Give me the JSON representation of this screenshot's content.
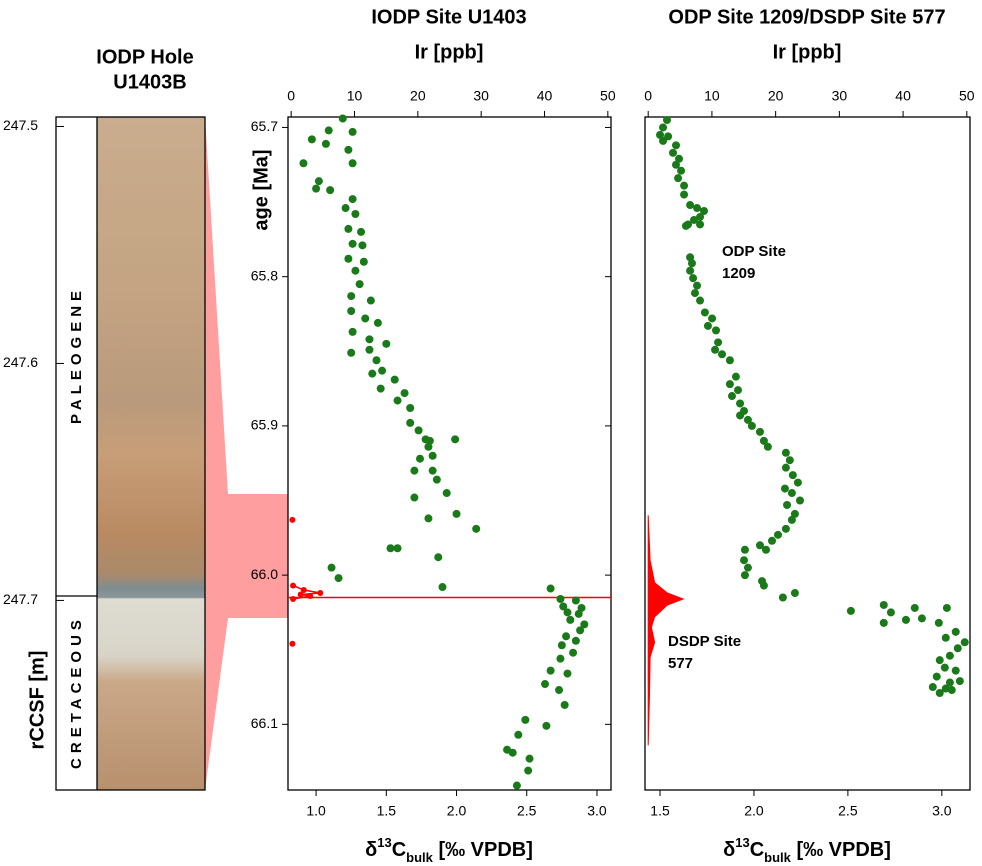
{
  "core": {
    "title": [
      "IODP Hole",
      "U1403B"
    ],
    "ylabel": "rCCSF [m]",
    "ylim": [
      247.496,
      247.78
    ],
    "yticks": [
      247.5,
      247.6,
      247.7
    ],
    "units": [
      "PALEOGENE",
      "CRETACEOUS"
    ]
  },
  "chart_data": [
    {
      "type": "scatter",
      "title": "IODP Site U1403",
      "x2label": "Ir [ppb]",
      "xlabel": [
        "δ",
        "13",
        "C",
        "bulk",
        " [‰ VPDB]"
      ],
      "ylabel": "age [Ma]",
      "xlim": [
        0.8,
        3.1
      ],
      "xticks": [
        {
          "value": 1,
          "label": "1.0"
        },
        1.5,
        {
          "value": 2,
          "label": "2.0"
        },
        2.5,
        {
          "value": 3,
          "label": "3.0"
        }
      ],
      "x2lim": [
        -0.5,
        50.5
      ],
      "x2ticks": [
        0,
        10,
        20,
        30,
        40,
        50
      ],
      "ylim": [
        65.693,
        66.144
      ],
      "yticks": [
        65.7,
        65.8,
        65.9,
        {
          "value": 66,
          "label": "66.0"
        },
        66.1
      ],
      "y_inverted": true,
      "boundary_line": 66.015,
      "series": [
        {
          "color": "#1a7a1a",
          "x": [
            1.19,
            1.09,
            1.26,
            0.97,
            1.07,
            1.23,
            0.91,
            1.26,
            1.02,
            1.0,
            1.1,
            1.21,
            1.26,
            1.28,
            1.23,
            1.32,
            1.26,
            1.33,
            1.23,
            1.34,
            1.28,
            1.31,
            1.25,
            1.39,
            1.25,
            1.35,
            1.44,
            1.26,
            1.38,
            1.5,
            1.38,
            1.25,
            1.43,
            1.47,
            1.4,
            1.56,
            1.46,
            1.63,
            1.58,
            1.67,
            1.67,
            1.73,
            1.78,
            1.81,
            1.99,
            1.8,
            1.83,
            1.74,
            1.83,
            1.7,
            1.86,
            1.93,
            1.7,
            2.0,
            1.8,
            2.14,
            1.53,
            1.58,
            1.87,
            1.11,
            1.16,
            1.9,
            2.67,
            2.74,
            2.85,
            2.76,
            2.89,
            2.79,
            2.87,
            2.81,
            2.91,
            2.88,
            2.78,
            2.85,
            2.75,
            2.83,
            2.74,
            2.67,
            2.79,
            2.63,
            2.73,
            2.77,
            2.49,
            2.64,
            2.44,
            2.36,
            2.4,
            2.52,
            2.51,
            2.43
          ],
          "y": [
            65.694,
            65.702,
            65.703,
            65.708,
            65.711,
            65.715,
            65.724,
            65.724,
            65.736,
            65.741,
            65.742,
            65.754,
            65.748,
            65.758,
            65.768,
            65.77,
            65.778,
            65.779,
            65.788,
            65.79,
            65.796,
            65.805,
            65.813,
            65.816,
            65.823,
            65.828,
            65.831,
            65.837,
            65.842,
            65.845,
            65.849,
            65.851,
            65.856,
            65.863,
            65.865,
            65.869,
            65.875,
            65.878,
            65.883,
            65.888,
            65.898,
            65.903,
            65.909,
            65.91,
            65.909,
            65.914,
            65.92,
            65.922,
            65.93,
            65.93,
            65.936,
            65.945,
            65.948,
            65.959,
            65.962,
            65.969,
            65.982,
            65.982,
            65.988,
            65.995,
            66.002,
            66.008,
            66.009,
            66.016,
            66.017,
            66.021,
            66.022,
            66.025,
            66.026,
            66.03,
            66.033,
            66.037,
            66.041,
            66.044,
            66.047,
            66.052,
            66.056,
            66.064,
            66.066,
            66.073,
            66.077,
            66.087,
            66.097,
            66.101,
            66.107,
            66.117,
            66.119,
            66.123,
            66.131,
            66.141
          ]
        },
        {
          "color": "#ff0000",
          "axis": "x2",
          "style": "line",
          "x": [
            0.2,
            null,
            0.3,
            2,
            4.6,
            1.5,
            3,
            0.3,
            null,
            0.2
          ],
          "y": [
            65.963,
            null,
            66.007,
            66.01,
            66.012,
            66.013,
            66.014,
            66.016,
            null,
            66.046
          ]
        }
      ]
    },
    {
      "type": "scatter",
      "title": "ODP Site 1209/DSDP Site 577",
      "x2label": "Ir [ppb]",
      "xlabel": [
        "δ",
        "13",
        "C",
        "bulk",
        " [‰ VPDB]"
      ],
      "xlim": [
        1.42,
        3.15
      ],
      "xticks": [
        1.5,
        {
          "value": 2,
          "label": "2.0"
        },
        2.5,
        {
          "value": 3,
          "label": "3.0"
        }
      ],
      "x2lim": [
        -0.5,
        50.5
      ],
      "x2ticks": [
        0,
        10,
        20,
        30,
        40,
        50
      ],
      "ylim": [
        65.693,
        66.144
      ],
      "y_inverted": true,
      "annotations": [
        [
          "ODP Site",
          "1209"
        ],
        [
          "DSDP Site",
          "577"
        ]
      ],
      "series": [
        {
          "color": "#1a7a1a",
          "x": [
            1.537,
            1.516,
            1.5,
            1.543,
            1.516,
            1.585,
            1.569,
            1.601,
            1.585,
            1.612,
            1.596,
            1.628,
            1.628,
            1.66,
            1.697,
            1.734,
            1.713,
            1.681,
            1.649,
            1.638,
            1.713,
            1.66,
            1.67,
            1.66,
            1.676,
            1.697,
            1.686,
            1.713,
            1.739,
            1.777,
            1.755,
            1.798,
            1.809,
            1.793,
            1.83,
            1.872,
            1.904,
            1.872,
            1.915,
            1.883,
            1.926,
            1.947,
            1.926,
            1.968,
            1.989,
            2.032,
            2.053,
            2.074,
            2.17,
            2.191,
            2.17,
            2.207,
            2.234,
            2.165,
            2.202,
            2.245,
            2.176,
            2.218,
            2.202,
            2.17,
            2.128,
            2.096,
            2.032,
            2.064,
            1.952,
            1.947,
            1.968,
            1.952,
            2.043,
            2.053,
            2.218,
            2.154,
            2.516,
            2.691,
            2.729,
            2.691,
            2.809,
            2.856,
            2.894,
            3.027,
            2.984,
            3.074,
            3.021,
            3.122,
            3.085,
            3.043,
            2.989,
            3.016,
            3.074,
            2.973,
            3.043,
            3.096,
            2.952,
            3.021,
            2.989,
            3.053
          ],
          "y": [
            65.695,
            65.7,
            65.705,
            65.706,
            65.709,
            65.712,
            65.717,
            65.721,
            65.725,
            65.729,
            65.734,
            65.739,
            65.745,
            65.752,
            65.754,
            65.756,
            65.76,
            65.762,
            65.765,
            65.766,
            65.765,
            65.787,
            65.791,
            65.796,
            65.801,
            65.806,
            65.811,
            65.816,
            65.824,
            65.828,
            65.833,
            65.836,
            65.844,
            65.849,
            65.852,
            65.856,
            65.867,
            65.872,
            65.876,
            65.88,
            65.885,
            65.89,
            65.893,
            65.896,
            65.9,
            65.904,
            65.91,
            65.914,
            65.918,
            65.923,
            65.928,
            65.933,
            65.938,
            65.942,
            65.945,
            65.95,
            65.953,
            65.959,
            65.963,
            65.969,
            65.973,
            65.977,
            65.98,
            65.983,
            65.983,
            65.99,
            65.995,
            66.0,
            66.004,
            66.007,
            66.012,
            66.015,
            66.024,
            66.02,
            66.025,
            66.032,
            66.03,
            66.022,
            66.029,
            66.022,
            66.032,
            66.038,
            66.042,
            66.045,
            66.049,
            66.054,
            66.057,
            66.062,
            66.064,
            66.068,
            66.072,
            66.071,
            66.075,
            66.076,
            66.079,
            66.077
          ]
        },
        {
          "color": "#ff0000",
          "axis": "x2",
          "style": "area",
          "x": [
            0,
            0.3,
            1,
            3,
            5.5,
            3,
            1,
            0.5,
            1,
            0.3,
            0.2,
            0
          ],
          "y": [
            65.96,
            65.99,
            66.005,
            66.012,
            66.016,
            66.02,
            66.028,
            66.035,
            66.045,
            66.055,
            66.08,
            66.114
          ]
        }
      ]
    }
  ]
}
